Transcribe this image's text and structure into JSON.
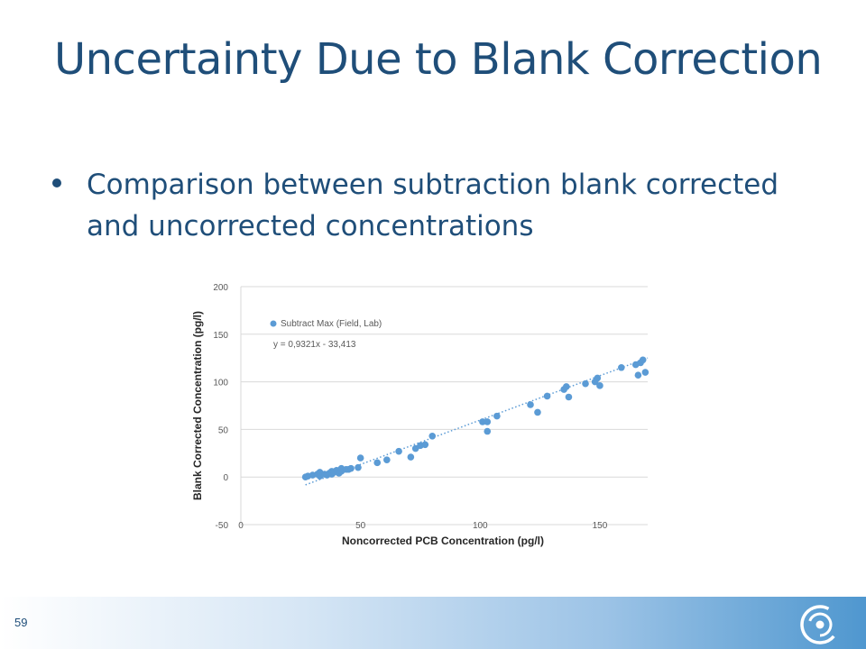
{
  "slide": {
    "title": "Uncertainty Due to Blank Correction",
    "bullet": "Comparison between subtraction blank corrected and uncorrected concentrations",
    "page_number": "59",
    "logo_icon": "swirl-logo-icon"
  },
  "colors": {
    "title": "#1f4e79",
    "marker": "#5b9bd5",
    "trendline": "#5b9bd5",
    "grid": "#d9d9d9"
  },
  "chart_data": {
    "type": "scatter",
    "xlabel": "Noncorrected PCB Concentration (pg/l)",
    "ylabel": "Blank Corrected Concentration (pg/l)",
    "xlim": [
      0,
      170
    ],
    "ylim": [
      -50,
      200
    ],
    "x_ticks": [
      0,
      50,
      100,
      150
    ],
    "y_ticks": [
      -50,
      0,
      50,
      100,
      150,
      200
    ],
    "grid": "horizontal",
    "legend_position": "top-left",
    "series": [
      {
        "name": "Subtract Max (Field, Lab)",
        "points": [
          [
            27,
            0
          ],
          [
            28,
            1
          ],
          [
            30,
            2
          ],
          [
            32,
            3
          ],
          [
            33,
            1
          ],
          [
            33,
            5
          ],
          [
            35,
            3
          ],
          [
            36,
            2
          ],
          [
            37,
            4
          ],
          [
            38,
            6
          ],
          [
            38,
            3
          ],
          [
            39,
            5
          ],
          [
            40,
            7
          ],
          [
            41,
            4
          ],
          [
            42,
            9
          ],
          [
            42,
            6
          ],
          [
            44,
            8
          ],
          [
            45,
            8
          ],
          [
            46,
            9
          ],
          [
            49,
            10
          ],
          [
            50,
            20
          ],
          [
            57,
            15
          ],
          [
            61,
            18
          ],
          [
            66,
            27
          ],
          [
            71,
            21
          ],
          [
            73,
            30
          ],
          [
            75,
            33
          ],
          [
            77,
            34
          ],
          [
            80,
            43
          ],
          [
            101,
            58
          ],
          [
            103,
            48
          ],
          [
            103,
            58
          ],
          [
            107,
            64
          ],
          [
            121,
            76
          ],
          [
            124,
            68
          ],
          [
            128,
            85
          ],
          [
            135,
            92
          ],
          [
            136,
            95
          ],
          [
            137,
            84
          ],
          [
            144,
            98
          ],
          [
            148,
            100
          ],
          [
            149,
            104
          ],
          [
            150,
            96
          ],
          [
            159,
            115
          ],
          [
            165,
            118
          ],
          [
            166,
            107
          ],
          [
            167,
            120
          ],
          [
            168,
            123
          ],
          [
            169,
            110
          ]
        ]
      }
    ],
    "trendline": {
      "equation": "y = 0,9321x - 33,413",
      "slope": 0.9321,
      "intercept": -33.413,
      "x_range": [
        27,
        170
      ],
      "style": "dotted"
    }
  }
}
